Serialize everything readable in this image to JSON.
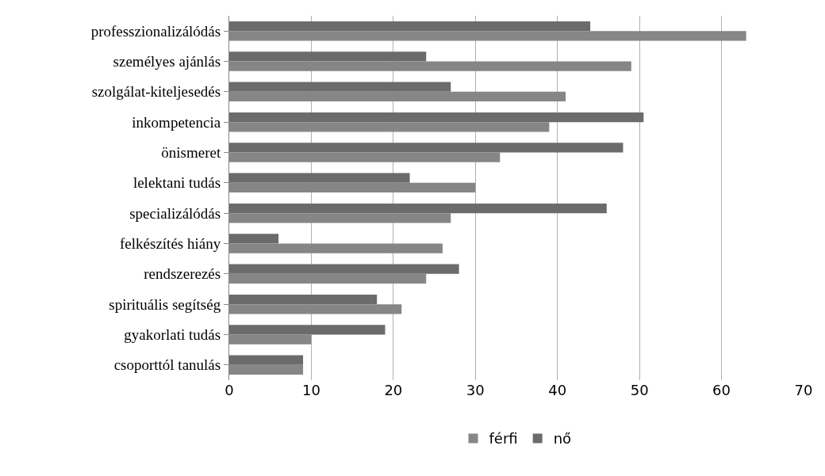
{
  "chart_data": {
    "type": "bar",
    "orientation": "horizontal",
    "categories": [
      "professzionalizálódás",
      "személyes ajánlás",
      "szolgálat-kiteljesedés",
      "inkompetencia",
      "önismeret",
      "lelektani tudás",
      "specializálódás",
      "felkészítés hiány",
      "rendszerezés",
      "spirituális segítség",
      "gyakorlati tudás",
      "csoporttól tanulás"
    ],
    "series": [
      {
        "name": "férfi",
        "color": "#868686",
        "values": [
          63,
          49,
          41,
          39,
          33,
          30,
          27,
          26,
          24,
          21,
          10,
          9
        ]
      },
      {
        "name": "nő",
        "color": "#6b6b6b",
        "values": [
          44,
          24,
          27,
          50.5,
          48,
          22,
          46,
          6,
          28,
          18,
          19,
          9
        ]
      }
    ],
    "xlim": [
      0,
      70
    ],
    "xticks": [
      0,
      10,
      20,
      30,
      40,
      50,
      60,
      70
    ],
    "grid": "x",
    "legend": "bottom"
  }
}
